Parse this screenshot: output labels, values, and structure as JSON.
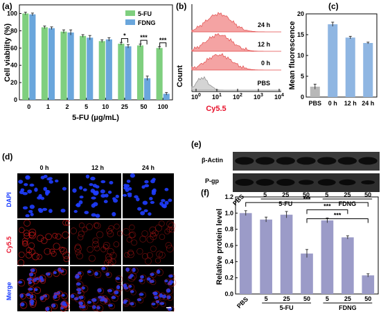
{
  "colors": {
    "fu": "#7fcf7f",
    "fdng": "#6aa6dc",
    "bar_c_pbs": "#b8b8b8",
    "bar_c": "#8fb6e2",
    "bar_f": "#9b9bc8",
    "cy55": "#e8102a",
    "dapi": "#1538ff",
    "red_fill": "#f4a3a3",
    "red_line": "#e24a4a",
    "gray_fill": "#d4d4d4"
  },
  "panels": {
    "a": "(a)",
    "b": "(b)",
    "c": "(c)",
    "d": "(d)",
    "e": "(e)",
    "f": "(f)"
  },
  "panel_d": {
    "columns": [
      "0 h",
      "12 h",
      "24 h"
    ],
    "rows": [
      "DAPI",
      "Cy5.5",
      "Merge"
    ]
  },
  "panel_e": {
    "bands": [
      "β-Actin",
      "P-gp"
    ],
    "pbs": "PBS",
    "doses": [
      "5",
      "25",
      "50",
      "5",
      "25",
      "50"
    ],
    "groups": [
      "5-FU",
      "FDNG"
    ]
  },
  "chart_data": [
    {
      "id": "a",
      "type": "bar",
      "categories": [
        "0",
        "1",
        "2",
        "5",
        "10",
        "25",
        "50",
        "100"
      ],
      "series": [
        {
          "name": "5-FU",
          "values": [
            100,
            84,
            79,
            74,
            68,
            65,
            63,
            60
          ],
          "errors": [
            1.5,
            1.5,
            2,
            1.5,
            1.5,
            1.5,
            1.5,
            1.5
          ]
        },
        {
          "name": "FDNG",
          "values": [
            99,
            83,
            78,
            72,
            70,
            62,
            25,
            7
          ],
          "errors": [
            1.5,
            1.5,
            3,
            2.5,
            2,
            2,
            2.5,
            1.5
          ]
        }
      ],
      "xlabel": "5-FU (μg/mL)",
      "ylabel": "Cell viability (%)",
      "ylim": [
        0,
        110
      ],
      "yticks": [
        0,
        20,
        40,
        60,
        80,
        100
      ],
      "significance": [
        "*",
        "***",
        "***"
      ],
      "legend": "top-right"
    },
    {
      "id": "b",
      "type": "area",
      "traces": [
        "24 h",
        "12 h",
        "0 h",
        "PBS"
      ],
      "xlabel": "Cy5.5",
      "ylabel": "Count",
      "xticks": [
        "10^0",
        "10^1",
        "10^2",
        "10^3",
        "10^4"
      ],
      "xscale": "log"
    },
    {
      "id": "c",
      "type": "bar",
      "categories": [
        "PBS",
        "0 h",
        "12 h",
        "24 h"
      ],
      "values": [
        2.5,
        17.5,
        14.3,
        13.0
      ],
      "errors": [
        0.6,
        0.5,
        0.3,
        0.2
      ],
      "ylabel": "Mean fluorescence",
      "ylim": [
        0,
        20
      ],
      "yticks": [
        0,
        5,
        10,
        15,
        20
      ]
    },
    {
      "id": "f",
      "type": "bar",
      "categories": [
        "PBS",
        "5",
        "25",
        "50",
        "5",
        "25",
        "50"
      ],
      "groups": [
        "5-FU",
        "FDNG"
      ],
      "values": [
        1.0,
        0.92,
        0.98,
        0.5,
        0.91,
        0.7,
        0.23
      ],
      "errors": [
        0.03,
        0.03,
        0.04,
        0.05,
        0.03,
        0.02,
        0.02
      ],
      "ylabel": "Relative protein level",
      "ylim": [
        0,
        1.2
      ],
      "yticks": [
        0.0,
        0.2,
        0.4,
        0.6,
        0.8,
        1.0,
        1.2
      ],
      "significance": [
        "***",
        "***",
        "***"
      ]
    }
  ]
}
